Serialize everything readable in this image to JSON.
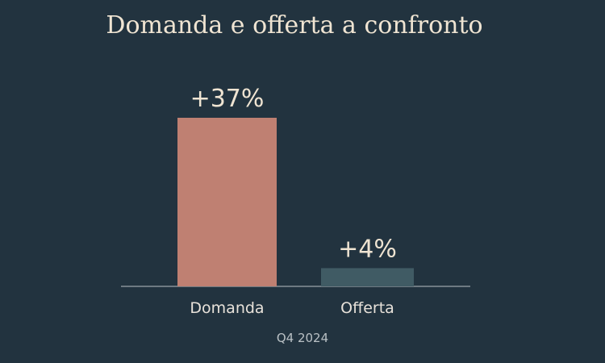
{
  "title": "Domanda e offerta a confronto",
  "footnote": "Q4 2024",
  "colors": {
    "background": "#22333f",
    "baseline": "#b9c0c4",
    "text": "#efe4d2",
    "category_text": "#e8e2da"
  },
  "chart_data": {
    "type": "bar",
    "categories": [
      "Domanda",
      "Offerta"
    ],
    "values": [
      37,
      4
    ],
    "value_labels": [
      "+37%",
      "+4%"
    ],
    "bar_colors": [
      "#bf8072",
      "#405b64"
    ],
    "unit": "%",
    "title": "Domanda e offerta a confronto",
    "xlabel": "",
    "ylabel": "",
    "grid": false,
    "legend": "none"
  }
}
